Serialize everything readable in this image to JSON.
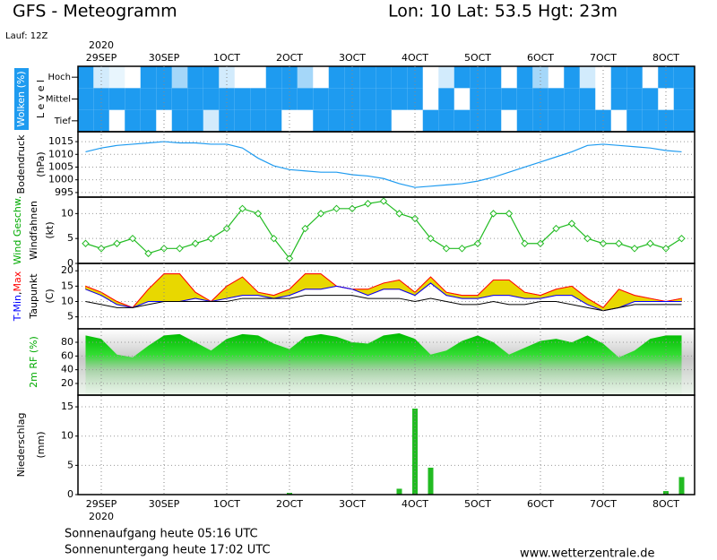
{
  "header": {
    "title": "GFS - Meteogramm",
    "location": "Lon: 10 Lat: 53.5 Hgt: 23m",
    "run": "Lauf: 12Z",
    "year": "2020"
  },
  "chart_data": [
    {
      "type": "heatmap",
      "categories": [
        null,
        "29SEP",
        null,
        null,
        null,
        "30SEP",
        null,
        null,
        null,
        "1OCT",
        null,
        null,
        null,
        "2OCT",
        null,
        null,
        null,
        "3OCT",
        null,
        null,
        null,
        "4OCT",
        null,
        null,
        null,
        "5OCT",
        null,
        null,
        null,
        "6OCT",
        null,
        null,
        null,
        "7OCT",
        null,
        null,
        null,
        "8OCT",
        null
      ],
      "ylabel_lines": [
        [
          {
            "text": "Wolken (%)",
            "color": "#ffffff",
            "box": "#1e9bf0"
          }
        ],
        [
          {
            "text": "L e v e l",
            "color": "#000000"
          }
        ]
      ],
      "color": "#1e9bf0",
      "series": [
        {
          "name": "Hoch",
          "values": [
            100,
            20,
            10,
            0,
            100,
            100,
            40,
            100,
            100,
            20,
            0,
            0,
            100,
            100,
            40,
            0,
            100,
            100,
            100,
            100,
            100,
            100,
            0,
            20,
            100,
            100,
            100,
            0,
            100,
            40,
            0,
            100,
            20,
            0,
            100,
            100,
            0,
            100,
            100
          ]
        },
        {
          "name": "Mittel",
          "values": [
            100,
            100,
            100,
            100,
            100,
            100,
            100,
            100,
            100,
            100,
            100,
            100,
            100,
            100,
            100,
            100,
            100,
            100,
            100,
            100,
            100,
            100,
            0,
            100,
            0,
            100,
            100,
            100,
            100,
            100,
            100,
            100,
            100,
            0,
            100,
            100,
            100,
            0,
            100
          ]
        },
        {
          "name": "Tief",
          "values": [
            100,
            100,
            0,
            100,
            100,
            0,
            100,
            100,
            20,
            100,
            100,
            100,
            100,
            0,
            0,
            100,
            100,
            100,
            100,
            100,
            0,
            0,
            100,
            100,
            100,
            100,
            100,
            0,
            100,
            100,
            100,
            100,
            100,
            100,
            0,
            100,
            100,
            100,
            100
          ]
        }
      ]
    },
    {
      "type": "line",
      "ylabel_lines": [
        [
          {
            "text": "Bodendruck",
            "color": "#000000"
          }
        ],
        [
          {
            "text": "(hPa)",
            "color": "#000000"
          }
        ]
      ],
      "ylim": [
        993.2,
        1018.9
      ],
      "yticks": [
        995,
        1000,
        1005,
        1010,
        1015
      ],
      "grid": true,
      "color": "#1e9bf0",
      "values": [
        1011,
        1012.5,
        1013.5,
        1014,
        1014.5,
        1015,
        1014.5,
        1014.5,
        1014,
        1014,
        1012.5,
        1008.5,
        1005.5,
        1004,
        1003.5,
        1003,
        1003,
        1002,
        1001.5,
        1000.5,
        998.5,
        997,
        997.5,
        998,
        998.5,
        999.5,
        1001,
        1003,
        1005,
        1007,
        1009,
        1011,
        1013.5,
        1014,
        1013.5,
        1013,
        1012.5,
        1011.5,
        1011
      ]
    },
    {
      "type": "line",
      "marker": "diamond",
      "ylabel_lines": [
        [
          {
            "text": "Wind Geschw.",
            "color": "#00aa00"
          }
        ],
        [
          {
            "text": "Windfahnen",
            "color": "#000000"
          }
        ],
        [
          {
            "text": "(kt)",
            "color": "#000000"
          }
        ]
      ],
      "ylim": [
        0,
        13.3
      ],
      "yticks": [
        0,
        5,
        10
      ],
      "grid": true,
      "color": "#22bb22",
      "values": [
        4,
        3,
        4,
        5,
        2,
        3,
        3,
        4,
        5,
        7,
        11,
        10,
        5,
        1,
        7,
        10,
        11,
        11,
        12,
        12.5,
        10,
        9,
        5,
        3,
        3,
        4,
        10,
        10,
        4,
        4,
        7,
        8,
        5,
        4,
        4,
        3,
        4,
        3,
        5
      ]
    },
    {
      "type": "band",
      "ylabel_lines": [
        [
          {
            "text": "T-Min",
            "color": "#0000ff"
          },
          {
            "text": ",",
            "color": "#000000"
          },
          {
            "text": "Max",
            "color": "#ff0000"
          }
        ],
        [
          {
            "text": "Taupunkt",
            "color": "#000000"
          }
        ],
        [
          {
            "text": "(C)",
            "color": "#000000"
          }
        ]
      ],
      "ylim": [
        1.1,
        22.4
      ],
      "yticks": [
        5,
        10,
        15,
        20
      ],
      "grid": true,
      "fill": "#e8d800",
      "series": [
        {
          "color": "#ff0000",
          "values": [
            15,
            13,
            10,
            8,
            14,
            19,
            19,
            13,
            10,
            15,
            18,
            13,
            12,
            14,
            19,
            19,
            15,
            14,
            14,
            16,
            17,
            13,
            18,
            13,
            12,
            12,
            17,
            17,
            13,
            12,
            14,
            15,
            11,
            8,
            14,
            12,
            11,
            10,
            11
          ]
        },
        {
          "color": "#0000ff",
          "values": [
            14,
            12,
            9,
            8,
            10,
            10,
            10,
            11,
            10,
            11,
            12,
            12,
            11,
            12,
            14,
            14,
            15,
            14,
            12,
            14,
            14,
            12,
            16,
            12,
            11,
            11,
            12,
            12,
            11,
            11,
            12,
            12,
            9,
            7,
            8,
            10,
            10,
            10,
            10
          ]
        },
        {
          "color": "#000000",
          "values": [
            10,
            9,
            8,
            8,
            9,
            10,
            10,
            10,
            10,
            10,
            11,
            11,
            11,
            11,
            12,
            12,
            12,
            12,
            11,
            11,
            11,
            10,
            11,
            10,
            9,
            9,
            10,
            9,
            9,
            10,
            10,
            9,
            8,
            7,
            8,
            9,
            9,
            9,
            9
          ]
        }
      ]
    },
    {
      "type": "area",
      "ylabel_lines": [
        [
          {
            "text": "2m RF (%)",
            "color": "#00aa00"
          }
        ]
      ],
      "ylim": [
        3,
        99.6
      ],
      "yticks": [
        20,
        40,
        60,
        80
      ],
      "grid": true,
      "color": "#11cc11",
      "values": [
        90,
        85,
        62,
        58,
        75,
        90,
        92,
        80,
        68,
        85,
        92,
        90,
        78,
        70,
        88,
        92,
        88,
        80,
        78,
        90,
        93,
        85,
        62,
        68,
        82,
        90,
        80,
        62,
        72,
        82,
        85,
        80,
        90,
        78,
        58,
        68,
        85,
        90,
        90
      ]
    },
    {
      "type": "bar",
      "ylabel_lines": [
        [
          {
            "text": "Niederschlag",
            "color": "#000000"
          }
        ],
        [
          {
            "text": "(mm)",
            "color": "#000000"
          }
        ]
      ],
      "ylim": [
        0,
        17
      ],
      "yticks": [
        0,
        5,
        10,
        15
      ],
      "grid": true,
      "color": "#22bb22",
      "values": [
        0,
        0,
        0,
        0,
        0,
        0,
        0,
        0,
        0,
        0,
        0,
        0,
        0,
        0.3,
        0,
        0,
        0,
        0,
        0,
        0,
        1,
        14.7,
        4.6,
        0,
        0,
        0,
        0,
        0,
        0,
        0,
        0,
        0,
        0,
        0,
        0,
        0,
        0,
        0.6,
        3
      ]
    }
  ],
  "footer": {
    "sunrise": "Sonnenaufgang heute 05:16 UTC",
    "sunset": "Sonnenuntergang heute 17:02 UTC",
    "source": "www.wetterzentrale.de"
  }
}
